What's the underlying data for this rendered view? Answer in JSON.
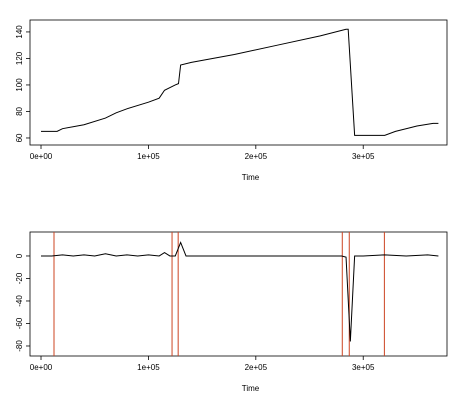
{
  "chart_data": [
    {
      "type": "line",
      "xlabel": "Time",
      "color": "#000000",
      "x": [
        0,
        15000,
        20000,
        40000,
        60000,
        70000,
        80000,
        100000,
        110000,
        115000,
        125000,
        128000,
        130000,
        140000,
        180000,
        220000,
        260000,
        284000,
        286000,
        292000,
        300000,
        320000,
        330000,
        350000,
        365000,
        370000
      ],
      "values": [
        65,
        65,
        67,
        70,
        75,
        79,
        82,
        87,
        90,
        96,
        100,
        101,
        115,
        117,
        123,
        130,
        137,
        142,
        142,
        62,
        62,
        62,
        65,
        69,
        71,
        71
      ],
      "xlim": [
        -10250,
        378000
      ],
      "ylim": [
        54.7,
        149
      ],
      "xticks": [
        {
          "value": 0,
          "label": "0e+00"
        },
        {
          "value": 100000,
          "label": "1e+05"
        },
        {
          "value": 200000,
          "label": "2e+05"
        },
        {
          "value": 300000,
          "label": "3e+05"
        }
      ],
      "yticks": [
        60,
        80,
        100,
        120,
        140
      ]
    },
    {
      "type": "line",
      "xlabel": "Time",
      "color": "#000000",
      "x": [
        0,
        10000,
        20000,
        30000,
        40000,
        50000,
        60000,
        70000,
        80000,
        90000,
        100000,
        110000,
        115000,
        120000,
        125000,
        130000,
        135000,
        150000,
        200000,
        250000,
        280000,
        284000,
        288000,
        292000,
        300000,
        320000,
        340000,
        360000,
        370000
      ],
      "values": [
        0,
        0,
        1,
        0,
        1,
        0,
        2,
        0,
        1,
        0,
        1,
        0,
        3,
        0,
        0,
        12,
        0,
        0,
        0,
        0,
        0,
        -1,
        -76,
        0,
        0,
        1,
        0,
        1,
        0
      ],
      "vlines": [
        12100,
        122000,
        127700,
        280500,
        287000,
        319700
      ],
      "vline_color": "#cc4422",
      "xlim": [
        -10250,
        378000
      ],
      "ylim": [
        -88.9,
        21.3
      ],
      "xticks": [
        {
          "value": 0,
          "label": "0e+00"
        },
        {
          "value": 100000,
          "label": "1e+05"
        },
        {
          "value": 200000,
          "label": "2e+05"
        },
        {
          "value": 300000,
          "label": "3e+05"
        }
      ],
      "yticks": [
        0,
        -20,
        -40,
        -60,
        -80
      ]
    }
  ]
}
